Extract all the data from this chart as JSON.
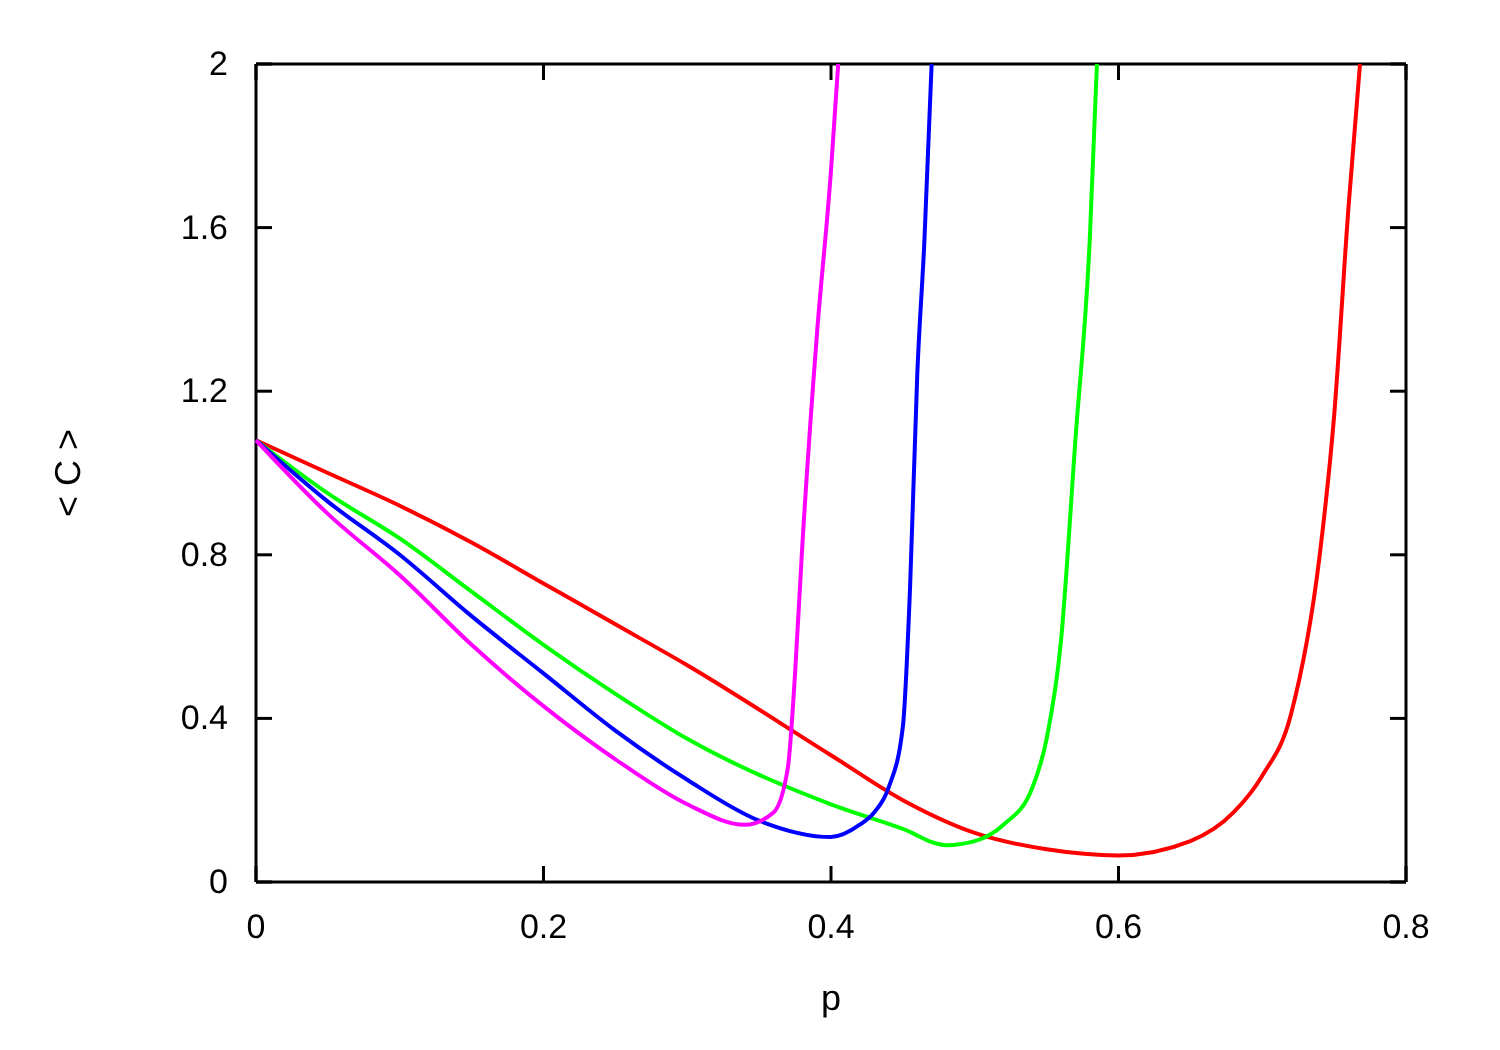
{
  "chart_data": {
    "type": "line",
    "xlabel": "p",
    "ylabel": "< C >",
    "xlim": [
      0,
      0.8
    ],
    "ylim": [
      0,
      2
    ],
    "xticks": [
      0,
      0.2,
      0.4,
      0.6,
      0.8
    ],
    "yticks": [
      0,
      0.4,
      0.8,
      1.2,
      1.6,
      2
    ],
    "grid": false,
    "marker": "none",
    "line_style": "solid",
    "series": [
      {
        "color": "#ff0000",
        "x": [
          0,
          0.05,
          0.1,
          0.15,
          0.2,
          0.25,
          0.3,
          0.4,
          0.45,
          0.5,
          0.55,
          0.6,
          0.65,
          0.68,
          0.7,
          0.72,
          0.74,
          0.75,
          0.76,
          0.768
        ],
        "values": [
          1.08,
          1.0,
          0.92,
          0.83,
          0.73,
          0.63,
          0.53,
          0.31,
          0.2,
          0.12,
          0.08,
          0.065,
          0.1,
          0.17,
          0.26,
          0.41,
          0.8,
          1.14,
          1.65,
          2.0
        ]
      },
      {
        "color": "#00ff00",
        "x": [
          0,
          0.05,
          0.1,
          0.15,
          0.2,
          0.25,
          0.3,
          0.4,
          0.45,
          0.48,
          0.5,
          0.52,
          0.54,
          0.55,
          0.56,
          0.57,
          0.58,
          0.585
        ],
        "values": [
          1.08,
          0.95,
          0.84,
          0.71,
          0.58,
          0.46,
          0.35,
          0.19,
          0.13,
          0.09,
          0.1,
          0.14,
          0.23,
          0.35,
          0.59,
          1.08,
          1.57,
          2.0
        ]
      },
      {
        "color": "#0000ff",
        "x": [
          0,
          0.05,
          0.1,
          0.15,
          0.2,
          0.25,
          0.3,
          0.35,
          0.4,
          0.42,
          0.43,
          0.44,
          0.45,
          0.455,
          0.46,
          0.465,
          0.47
        ],
        "values": [
          1.08,
          0.93,
          0.8,
          0.65,
          0.51,
          0.37,
          0.25,
          0.15,
          0.11,
          0.14,
          0.17,
          0.23,
          0.38,
          0.72,
          1.24,
          1.57,
          2.0
        ]
      },
      {
        "color": "#ff00ff",
        "x": [
          0,
          0.05,
          0.1,
          0.15,
          0.2,
          0.25,
          0.3,
          0.34,
          0.36,
          0.37,
          0.375,
          0.38,
          0.39,
          0.4,
          0.405
        ],
        "values": [
          1.08,
          0.9,
          0.75,
          0.58,
          0.43,
          0.3,
          0.19,
          0.14,
          0.17,
          0.28,
          0.51,
          0.82,
          1.33,
          1.74,
          2.0
        ]
      }
    ]
  }
}
